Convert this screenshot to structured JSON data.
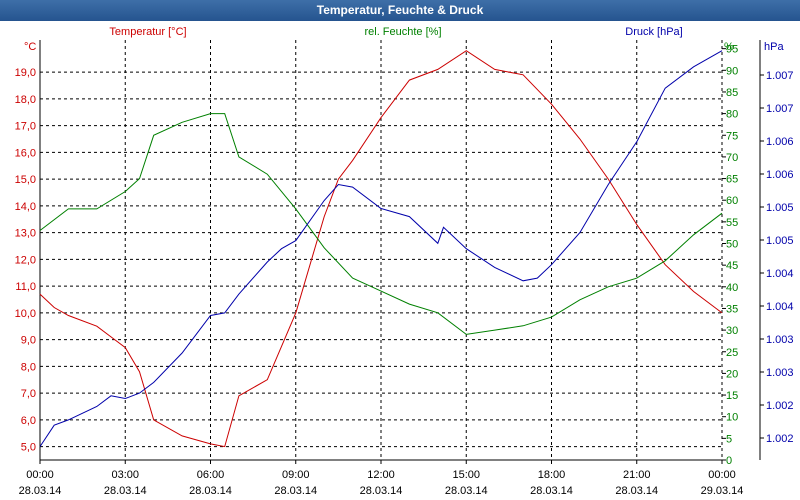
{
  "window": {
    "title": "Temperatur, Feuchte & Druck"
  },
  "colors": {
    "temperature": "#cc0000",
    "humidity": "#008000",
    "pressure": "#0000aa",
    "grid": "#000000",
    "titlebar": "#2f5f99"
  },
  "chart_data": {
    "type": "line",
    "title": "Temperatur, Feuchte & Druck",
    "grid": "dashed",
    "x": [
      "00:00",
      "01:00",
      "02:00",
      "03:00",
      "04:00",
      "05:00",
      "06:00",
      "06:30",
      "07:00",
      "08:00",
      "09:00",
      "10:00",
      "10:30",
      "11:00",
      "12:00",
      "13:00",
      "14:00",
      "15:00",
      "16:00",
      "17:00",
      "18:00",
      "19:00",
      "20:00",
      "21:00",
      "22:00",
      "23:00",
      "24:00"
    ],
    "x_ticks": [
      {
        "time": "00:00",
        "date": "28.03.14"
      },
      {
        "time": "03:00",
        "date": "28.03.14"
      },
      {
        "time": "06:00",
        "date": "28.03.14"
      },
      {
        "time": "09:00",
        "date": "28.03.14"
      },
      {
        "time": "12:00",
        "date": "28.03.14"
      },
      {
        "time": "15:00",
        "date": "28.03.14"
      },
      {
        "time": "18:00",
        "date": "28.03.14"
      },
      {
        "time": "21:00",
        "date": "28.03.14"
      },
      {
        "time": "00:00",
        "date": "29.03.14"
      }
    ],
    "axes": {
      "temperature": {
        "label": "Temperatur [°C]",
        "unit": "°C",
        "range": [
          4.5,
          20.2
        ],
        "ticks": [
          "5,0",
          "6,0",
          "7,0",
          "8,0",
          "9,0",
          "10,0",
          "11,0",
          "12,0",
          "13,0",
          "14,0",
          "15,0",
          "16,0",
          "17,0",
          "18,0",
          "19,0"
        ]
      },
      "humidity": {
        "label": "rel. Feuchte [%]",
        "unit": "%",
        "range": [
          0,
          97
        ],
        "ticks": [
          "0",
          "5",
          "10",
          "15",
          "20",
          "25",
          "30",
          "35",
          "40",
          "45",
          "50",
          "55",
          "60",
          "65",
          "70",
          "75",
          "80",
          "85",
          "90",
          "95"
        ]
      },
      "pressure": {
        "label": "Druck [hPa]",
        "unit": "hPa",
        "ticks": [
          "1.002",
          "1.002",
          "1.003",
          "1.003",
          "1.004",
          "1.004",
          "1.005",
          "1.005",
          "1.006",
          "1.006",
          "1.007",
          "1.007"
        ]
      }
    },
    "series": [
      {
        "name": "Temperatur [°C]",
        "axis": "temperature",
        "x": [
          0,
          0.5,
          1,
          2,
          2.5,
          3,
          3.5,
          4,
          5,
          6,
          6.5,
          7,
          8,
          9,
          10,
          10.5,
          11,
          12,
          13,
          14,
          15,
          16,
          17,
          18,
          19,
          20,
          21,
          22,
          23,
          24
        ],
        "values": [
          10.7,
          10.2,
          9.9,
          9.5,
          9.1,
          8.7,
          7.8,
          6.0,
          5.4,
          5.1,
          5.0,
          6.9,
          7.5,
          10.0,
          13.6,
          15.0,
          15.7,
          17.3,
          18.7,
          19.1,
          19.8,
          19.1,
          18.9,
          17.8,
          16.5,
          15.0,
          13.3,
          11.8,
          10.8,
          10.0
        ]
      },
      {
        "name": "rel. Feuchte [%]",
        "axis": "humidity",
        "x": [
          0,
          1,
          2,
          3,
          3.5,
          4,
          5,
          6,
          6.5,
          7,
          8,
          9,
          10,
          11,
          12,
          13,
          14,
          15,
          16,
          17,
          18,
          19,
          20,
          21,
          22,
          23,
          24
        ],
        "values": [
          53,
          58,
          58,
          62,
          65,
          75,
          78,
          80,
          80,
          70,
          66,
          58,
          49,
          42,
          39,
          36,
          34,
          29,
          30,
          31,
          33,
          37,
          40,
          42,
          46,
          52,
          57
        ]
      },
      {
        "name": "Druck [hPa]",
        "axis": "pressure",
        "x": [
          0,
          0.5,
          1,
          2,
          2.5,
          3,
          3.5,
          4,
          5,
          6,
          6.5,
          7,
          8,
          8.5,
          9,
          10,
          10.5,
          11,
          12,
          13,
          14,
          14.2,
          15,
          16,
          17,
          17.5,
          18,
          19,
          20,
          21,
          22,
          23,
          24
        ],
        "values": [
          5.0,
          5.8,
          6.0,
          6.5,
          6.9,
          6.8,
          7.0,
          7.4,
          8.5,
          9.9,
          10.0,
          10.7,
          11.9,
          12.4,
          12.7,
          14.2,
          14.8,
          14.7,
          13.9,
          13.6,
          12.6,
          13.2,
          12.4,
          11.7,
          11.2,
          11.3,
          11.8,
          13.0,
          14.8,
          16.4,
          18.4,
          19.2,
          19.8
        ]
      }
    ]
  }
}
